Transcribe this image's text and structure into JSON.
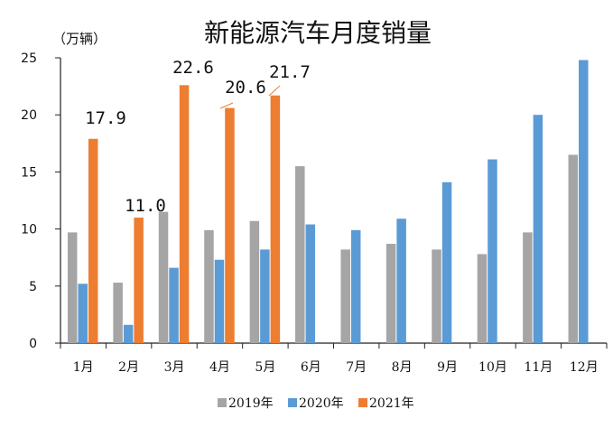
{
  "chart_data": {
    "type": "bar",
    "title": "新能源汽车月度销量",
    "unit_label": "（万辆）",
    "categories": [
      "1月",
      "2月",
      "3月",
      "4月",
      "5月",
      "6月",
      "7月",
      "8月",
      "9月",
      "10月",
      "11月",
      "12月"
    ],
    "series": [
      {
        "name": "2019年",
        "color": "#a5a5a5",
        "values": [
          9.7,
          5.3,
          11.5,
          9.9,
          10.7,
          15.5,
          8.2,
          8.7,
          8.2,
          7.8,
          9.7,
          16.5
        ]
      },
      {
        "name": "2020年",
        "color": "#5b9bd5",
        "values": [
          5.2,
          1.6,
          6.6,
          7.3,
          8.2,
          10.4,
          9.9,
          10.9,
          14.1,
          16.1,
          20.0,
          24.8
        ]
      },
      {
        "name": "2021年",
        "color": "#ed7d31",
        "values": [
          17.9,
          11.0,
          22.6,
          20.6,
          21.7,
          null,
          null,
          null,
          null,
          null,
          null,
          null
        ]
      }
    ],
    "data_labels": [
      {
        "series": 2,
        "index": 0,
        "text": "17.9"
      },
      {
        "series": 2,
        "index": 1,
        "text": "11.0"
      },
      {
        "series": 2,
        "index": 2,
        "text": "22.6"
      },
      {
        "series": 2,
        "index": 3,
        "text": "20.6"
      },
      {
        "series": 2,
        "index": 4,
        "text": "21.7"
      }
    ],
    "yticks": [
      "0",
      "5",
      "10",
      "15",
      "20",
      "25"
    ],
    "ylim": [
      0,
      25
    ],
    "grid": false,
    "legend_position": "bottom"
  }
}
